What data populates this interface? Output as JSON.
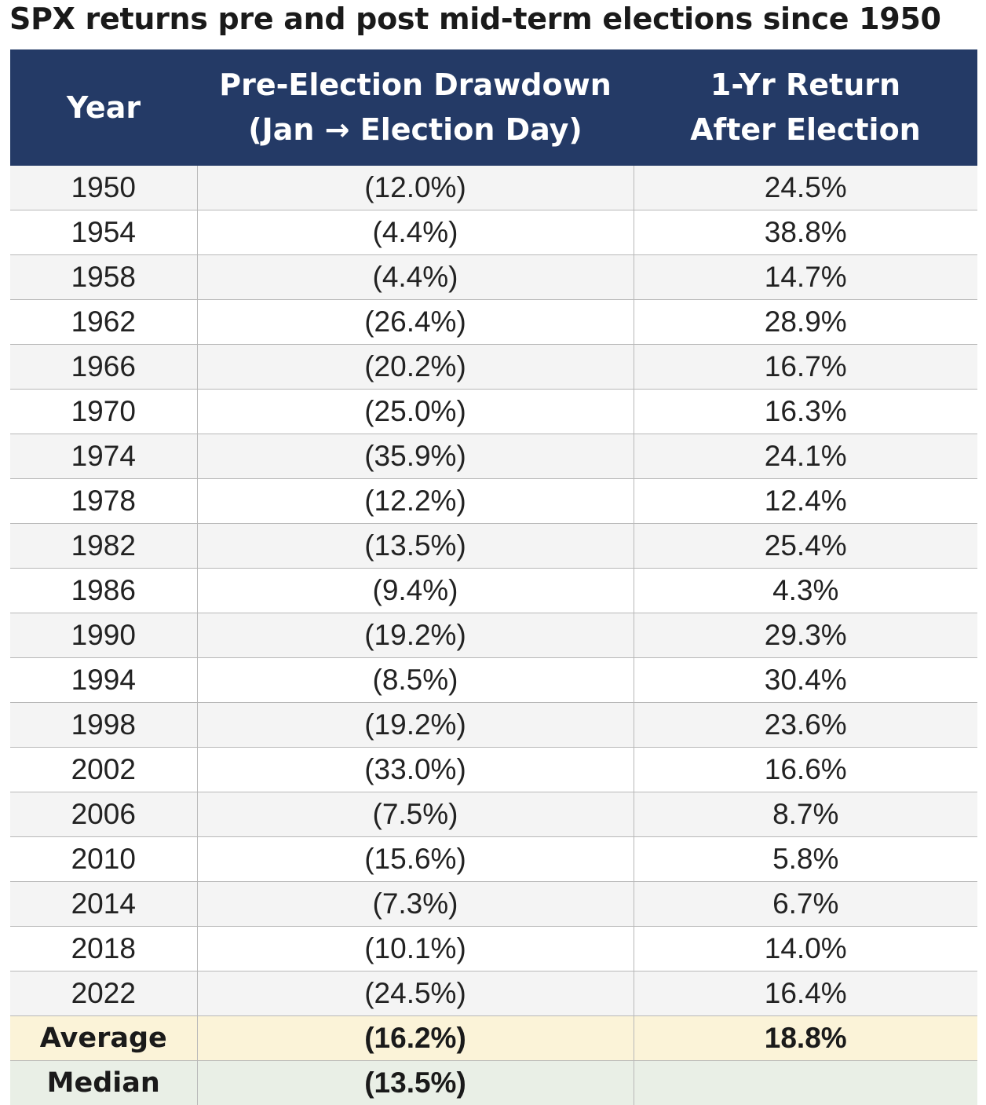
{
  "title": "SPX returns pre and post mid-term elections since 1950",
  "colors": {
    "header_bg": "#243a66",
    "header_text": "#ffffff",
    "average_row_bg": "#fbf3d8",
    "median_row_bg": "#e9efe6"
  },
  "chart_data": {
    "type": "table",
    "title": "SPX returns pre and post mid-term elections since 1950",
    "columns": [
      [
        "Year"
      ],
      [
        "Pre-Election Drawdown",
        "(Jan → Election Day)"
      ],
      [
        "1-Yr Return",
        "After Election"
      ]
    ],
    "rows": [
      [
        "1950",
        "(12.0%)",
        "24.5%"
      ],
      [
        "1954",
        "(4.4%)",
        "38.8%"
      ],
      [
        "1958",
        "(4.4%)",
        "14.7%"
      ],
      [
        "1962",
        "(26.4%)",
        "28.9%"
      ],
      [
        "1966",
        "(20.2%)",
        "16.7%"
      ],
      [
        "1970",
        "(25.0%)",
        "16.3%"
      ],
      [
        "1974",
        "(35.9%)",
        "24.1%"
      ],
      [
        "1978",
        "(12.2%)",
        "12.4%"
      ],
      [
        "1982",
        "(13.5%)",
        "25.4%"
      ],
      [
        "1986",
        "(9.4%)",
        "4.3%"
      ],
      [
        "1990",
        "(19.2%)",
        "29.3%"
      ],
      [
        "1994",
        "(8.5%)",
        "30.4%"
      ],
      [
        "1998",
        "(19.2%)",
        "23.6%"
      ],
      [
        "2002",
        "(33.0%)",
        "16.6%"
      ],
      [
        "2006",
        "(7.5%)",
        "8.7%"
      ],
      [
        "2010",
        "(15.6%)",
        "5.8%"
      ],
      [
        "2014",
        "(7.3%)",
        "6.7%"
      ],
      [
        "2018",
        "(10.1%)",
        "14.0%"
      ],
      [
        "2022",
        "(24.5%)",
        "16.4%"
      ]
    ],
    "summary_rows": [
      [
        "Average",
        "(16.2%)",
        "18.8%"
      ],
      [
        "Median",
        "(13.5%)",
        ""
      ]
    ]
  }
}
